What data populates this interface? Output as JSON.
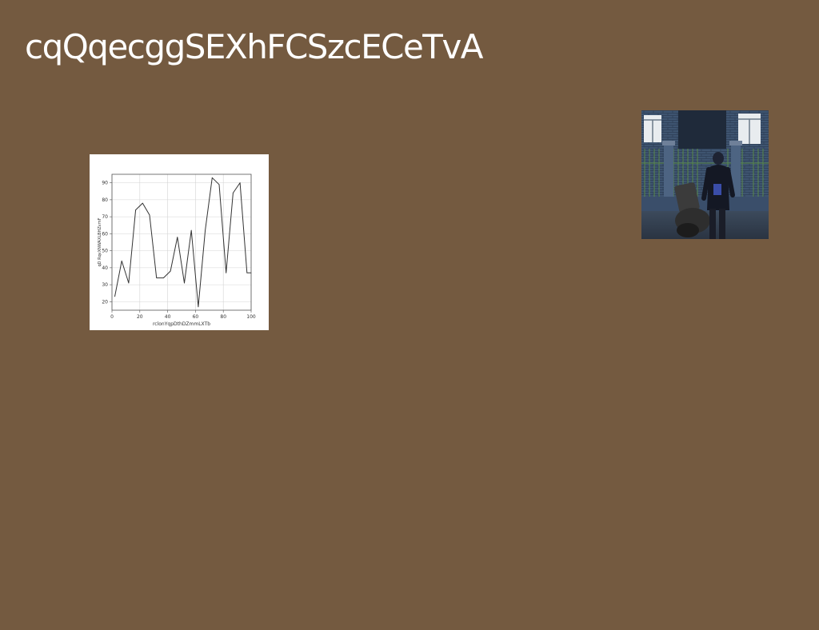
{
  "slide": {
    "title": "cqQqecggSEXhFCSzcECeTvA",
    "background": "#745a40"
  },
  "photo": {
    "subject": "person-with-motorcycle-in-front-of-building"
  },
  "chart_data": {
    "type": "line",
    "xlabel": "rclonYqpDthDZmmLXTb",
    "ylabel": "qD RqvXNWAXLBHZvmF",
    "xlim": [
      0,
      100
    ],
    "ylim": [
      15,
      95
    ],
    "xticks": [
      0,
      20,
      40,
      60,
      80,
      100
    ],
    "yticks": [
      20,
      30,
      40,
      50,
      60,
      70,
      80,
      90
    ],
    "grid": true,
    "series": [
      {
        "color": "#333333",
        "x": [
          2,
          7,
          12,
          17,
          22,
          27,
          32,
          37,
          42,
          47,
          52,
          57,
          62,
          67,
          72,
          77,
          82,
          87,
          92,
          97,
          100
        ],
        "y": [
          23,
          44,
          31,
          74,
          78,
          71,
          34,
          34,
          38,
          58,
          31,
          62,
          17,
          62,
          93,
          89,
          37,
          84,
          90,
          37,
          37
        ]
      }
    ]
  }
}
